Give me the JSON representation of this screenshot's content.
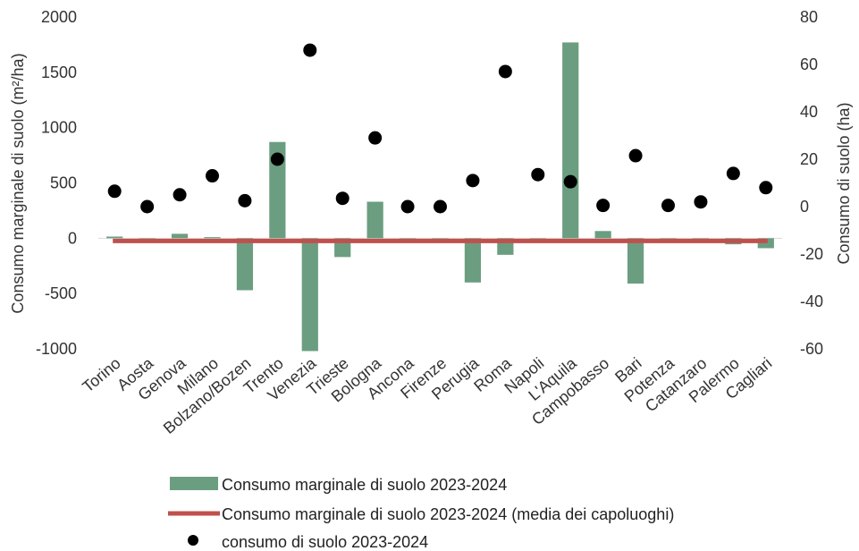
{
  "chart_data": {
    "type": "bar",
    "categories": [
      "Torino",
      "Aosta",
      "Genova",
      "Milano",
      "Bolzano/Bozen",
      "Trento",
      "Venezia",
      "Trieste",
      "Bologna",
      "Ancona",
      "Firenze",
      "Perugia",
      "Roma",
      "Napoli",
      "L'Aquila",
      "Campobasso",
      "Bari",
      "Potenza",
      "Catanzaro",
      "Palermo",
      "Cagliari"
    ],
    "bars": {
      "name": "Consumo marginale di suolo 2023-2024",
      "color": "#6b9e80",
      "axis": "left",
      "values": [
        15,
        0,
        40,
        10,
        -470,
        870,
        -1020,
        -170,
        330,
        0,
        0,
        -400,
        -150,
        0,
        1770,
        65,
        -410,
        0,
        0,
        -55,
        -90
      ]
    },
    "mean_line": {
      "name": "Consumo marginale di suolo 2023-2024 (media dei capoluoghi)",
      "color": "#c0504d",
      "axis": "left",
      "value": -25
    },
    "points": {
      "name": "consumo di suolo 2023-2024",
      "color": "#000000",
      "axis": "right",
      "values": [
        6.5,
        0,
        5,
        13,
        2.5,
        20,
        66,
        3.5,
        29,
        0,
        0,
        11,
        57,
        13.5,
        10.5,
        0.5,
        21.5,
        0.5,
        2,
        14,
        8
      ]
    },
    "left_axis": {
      "label": "Consumo marginale di  suolo (m²/ha)",
      "ylim": [
        -1000,
        2000
      ],
      "ticks": [
        -1000,
        -500,
        0,
        500,
        1000,
        1500,
        2000
      ]
    },
    "right_axis": {
      "label": "Consumo di suolo (ha)",
      "ylim": [
        -60,
        80
      ],
      "ticks": [
        -60,
        -40,
        -20,
        0,
        20,
        40,
        60,
        80
      ]
    },
    "legend_position": "bottom",
    "grid": false
  }
}
